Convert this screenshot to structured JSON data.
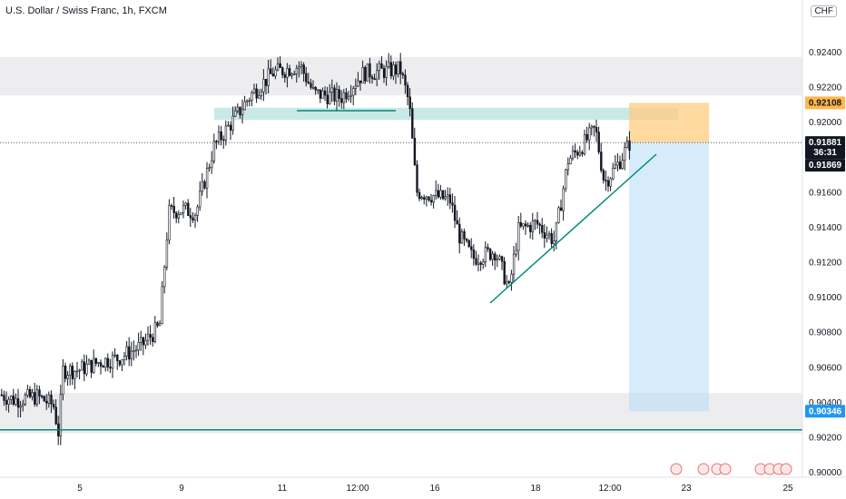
{
  "header": {
    "title": "U.S. Dollar / Swiss Franc, 1h, FXCM",
    "currency_badge": "CHF"
  },
  "colors": {
    "candle": "#131722",
    "zone_gray": "#ededf0",
    "teal_zone": "#b2dfdb",
    "teal_line": "#00897b",
    "stop_zone": "#ffcc80",
    "target_zone": "#d6ecfb",
    "price_tag_bg": "#131722",
    "stop_tag_bg": "#ffb74d",
    "target_tag_bg": "#2196f3"
  },
  "chart_data": {
    "type": "candlestick",
    "title": "U.S. Dollar / Swiss Franc, 1h, FXCM",
    "ylim": [
      0.9,
      0.926
    ],
    "y_ticks": [
      "0.92400",
      "0.92200",
      "0.92000",
      "0.91600",
      "0.91400",
      "0.91200",
      "0.91000",
      "0.90800",
      "0.90600",
      "0.90400",
      "0.90200",
      "0.90000"
    ],
    "x_ticks": [
      "5",
      "9",
      "11",
      "12:00",
      "16",
      "18",
      "12:00",
      "23",
      "25"
    ],
    "price_path": [
      {
        "x": 0,
        "y": 0.9044
      },
      {
        "x": 15,
        "y": 0.9041
      },
      {
        "x": 40,
        "y": 0.9043
      },
      {
        "x": 58,
        "y": 0.9038
      },
      {
        "x": 64,
        "y": 0.9021
      },
      {
        "x": 68,
        "y": 0.9058
      },
      {
        "x": 85,
        "y": 0.9058
      },
      {
        "x": 110,
        "y": 0.9063
      },
      {
        "x": 130,
        "y": 0.9065
      },
      {
        "x": 155,
        "y": 0.9072
      },
      {
        "x": 175,
        "y": 0.9083
      },
      {
        "x": 185,
        "y": 0.9148
      },
      {
        "x": 200,
        "y": 0.915
      },
      {
        "x": 215,
        "y": 0.9148
      },
      {
        "x": 235,
        "y": 0.9186
      },
      {
        "x": 255,
        "y": 0.92
      },
      {
        "x": 275,
        "y": 0.9215
      },
      {
        "x": 300,
        "y": 0.9228
      },
      {
        "x": 330,
        "y": 0.9232
      },
      {
        "x": 345,
        "y": 0.9216
      },
      {
        "x": 375,
        "y": 0.9214
      },
      {
        "x": 400,
        "y": 0.9228
      },
      {
        "x": 425,
        "y": 0.9229
      },
      {
        "x": 440,
        "y": 0.923
      },
      {
        "x": 450,
        "y": 0.921
      },
      {
        "x": 458,
        "y": 0.916
      },
      {
        "x": 475,
        "y": 0.9158
      },
      {
        "x": 495,
        "y": 0.9155
      },
      {
        "x": 505,
        "y": 0.9135
      },
      {
        "x": 520,
        "y": 0.9122
      },
      {
        "x": 545,
        "y": 0.9126
      },
      {
        "x": 560,
        "y": 0.9104
      },
      {
        "x": 570,
        "y": 0.9138
      },
      {
        "x": 590,
        "y": 0.9142
      },
      {
        "x": 610,
        "y": 0.9132
      },
      {
        "x": 625,
        "y": 0.9178
      },
      {
        "x": 640,
        "y": 0.9186
      },
      {
        "x": 655,
        "y": 0.9196
      },
      {
        "x": 665,
        "y": 0.9165
      },
      {
        "x": 680,
        "y": 0.9176
      },
      {
        "x": 693,
        "y": 0.9188
      }
    ],
    "last_price": "0.91881",
    "countdown": "36:31",
    "bid_price": "0.91869",
    "stop_price": "0.92108",
    "target_price": "0.90346",
    "levels": {
      "resistance_zone": [
        0.9215,
        0.9237
      ],
      "support_zone": [
        0.9022,
        0.9045
      ],
      "support_line": 0.9024,
      "teal_zone": [
        0.9201,
        0.9208
      ],
      "current_price_line": 0.91881
    }
  }
}
